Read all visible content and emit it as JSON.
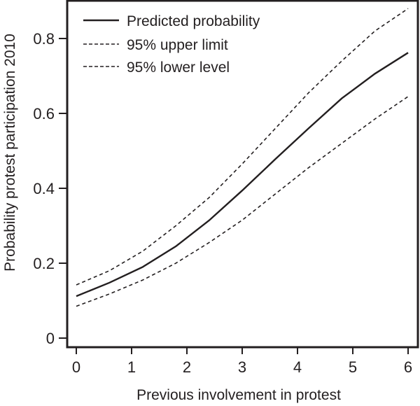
{
  "chart_data": {
    "type": "line",
    "title": "",
    "xlabel": "Previous involvement in protest",
    "ylabel": "Probability protest participation 2010",
    "xlim": [
      0,
      6
    ],
    "ylim": [
      0,
      0.9
    ],
    "x_ticks": [
      0,
      1,
      2,
      3,
      4,
      5,
      6
    ],
    "x_tick_labels": [
      "0",
      "1",
      "2",
      "3",
      "4",
      "5",
      "6"
    ],
    "y_ticks": [
      0,
      0.2,
      0.4,
      0.6,
      0.8
    ],
    "y_tick_labels": [
      "0",
      "0.2",
      "0.4",
      "0.6",
      "0.8"
    ],
    "grid": false,
    "legend_position": "top-left",
    "x": [
      0,
      0.6,
      1.2,
      1.8,
      2.4,
      3.0,
      3.6,
      4.2,
      4.8,
      5.4,
      6.0
    ],
    "series": [
      {
        "name": "Predicted probability",
        "style": "solid",
        "values": [
          0.112,
          0.148,
          0.19,
          0.245,
          0.314,
          0.394,
          0.478,
          0.56,
          0.64,
          0.706,
          0.762
        ]
      },
      {
        "name": "95% upper limit",
        "style": "dashed",
        "values": [
          0.142,
          0.18,
          0.232,
          0.3,
          0.375,
          0.465,
          0.56,
          0.655,
          0.74,
          0.82,
          0.88
        ]
      },
      {
        "name": "95% lower level",
        "style": "dashed",
        "values": [
          0.085,
          0.118,
          0.155,
          0.2,
          0.255,
          0.315,
          0.385,
          0.455,
          0.52,
          0.585,
          0.645
        ]
      }
    ]
  },
  "colors": {
    "ink": "#231f20",
    "background": "#ffffff"
  }
}
